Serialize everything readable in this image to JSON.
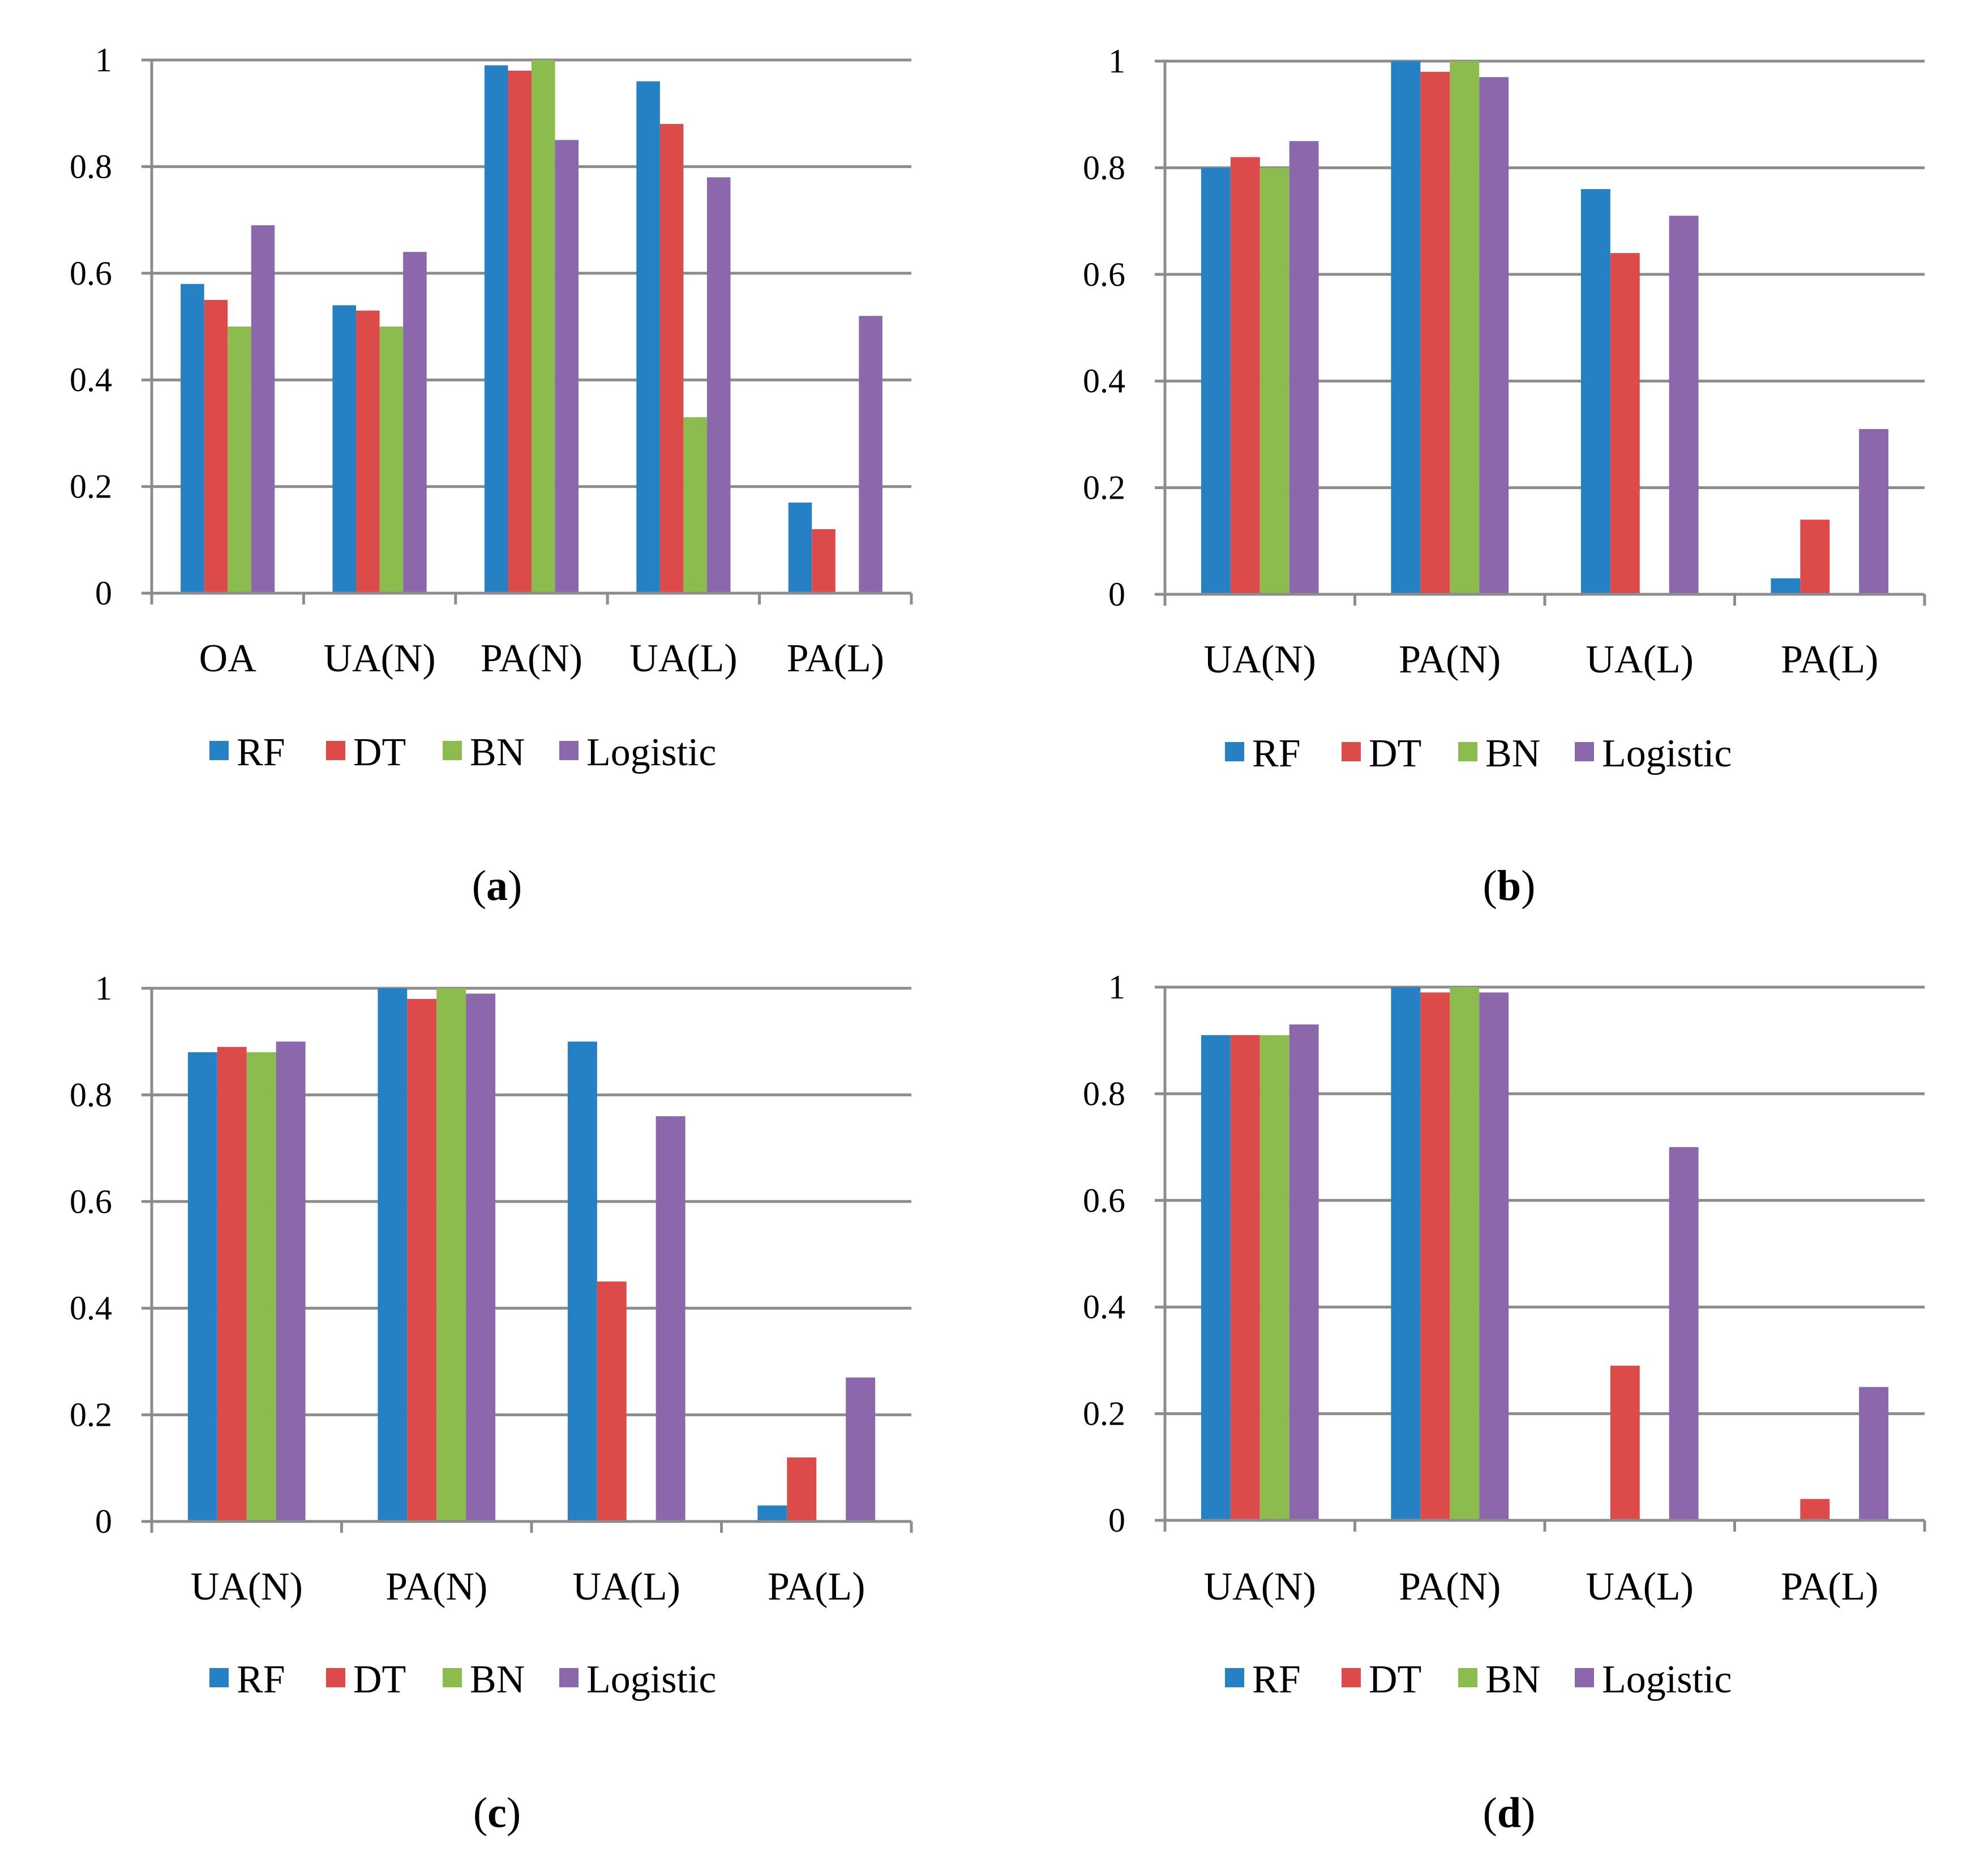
{
  "colors": {
    "RF": "#2681c4",
    "DT": "#dc4b4a",
    "BN": "#8cbb4e",
    "Logistic": "#8b68ab",
    "grid": "#8c8c8c",
    "axis": "#8c8c8c"
  },
  "chart_data": [
    {
      "type": "bar",
      "panel_label": "a",
      "categories": [
        "OA",
        "UA(N)",
        "PA(N)",
        "UA(L)",
        "PA(L)"
      ],
      "series": [
        {
          "name": "RF",
          "values": [
            0.58,
            0.54,
            0.99,
            0.96,
            0.17
          ]
        },
        {
          "name": "DT",
          "values": [
            0.55,
            0.53,
            0.98,
            0.88,
            0.12
          ]
        },
        {
          "name": "BN",
          "values": [
            0.5,
            0.5,
            1.0,
            0.33,
            0.0
          ]
        },
        {
          "name": "Logistic",
          "values": [
            0.69,
            0.64,
            0.85,
            0.78,
            0.52
          ]
        }
      ],
      "y_ticks": [
        "0",
        "0.2",
        "0.4",
        "0.6",
        "0.8",
        "1"
      ],
      "ylim": [
        0,
        1
      ],
      "grid": true,
      "legend": "bottom"
    },
    {
      "type": "bar",
      "panel_label": "b",
      "categories": [
        "UA(N)",
        "PA(N)",
        "UA(L)",
        "PA(L)"
      ],
      "series": [
        {
          "name": "RF",
          "values": [
            0.8,
            1.0,
            0.76,
            0.03
          ]
        },
        {
          "name": "DT",
          "values": [
            0.82,
            0.98,
            0.64,
            0.14
          ]
        },
        {
          "name": "BN",
          "values": [
            0.8,
            1.0,
            0.0,
            0.0
          ]
        },
        {
          "name": "Logistic",
          "values": [
            0.85,
            0.97,
            0.71,
            0.31
          ]
        }
      ],
      "y_ticks": [
        "0",
        "0.2",
        "0.4",
        "0.6",
        "0.8",
        "1"
      ],
      "ylim": [
        0,
        1
      ],
      "grid": true,
      "legend": "bottom"
    },
    {
      "type": "bar",
      "panel_label": "c",
      "categories": [
        "UA(N)",
        "PA(N)",
        "UA(L)",
        "PA(L)"
      ],
      "series": [
        {
          "name": "RF",
          "values": [
            0.88,
            1.0,
            0.9,
            0.03
          ]
        },
        {
          "name": "DT",
          "values": [
            0.89,
            0.98,
            0.45,
            0.12
          ]
        },
        {
          "name": "BN",
          "values": [
            0.88,
            1.0,
            0.0,
            0.0
          ]
        },
        {
          "name": "Logistic",
          "values": [
            0.9,
            0.99,
            0.76,
            0.27
          ]
        }
      ],
      "y_ticks": [
        "0",
        "0.2",
        "0.4",
        "0.6",
        "0.8",
        "1"
      ],
      "ylim": [
        0,
        1
      ],
      "grid": true,
      "legend": "bottom"
    },
    {
      "type": "bar",
      "panel_label": "d",
      "categories": [
        "UA(N)",
        "PA(N)",
        "UA(L)",
        "PA(L)"
      ],
      "series": [
        {
          "name": "RF",
          "values": [
            0.91,
            1.0,
            0.0,
            0.0
          ]
        },
        {
          "name": "DT",
          "values": [
            0.91,
            0.99,
            0.29,
            0.04
          ]
        },
        {
          "name": "BN",
          "values": [
            0.91,
            1.0,
            0.0,
            0.0
          ]
        },
        {
          "name": "Logistic",
          "values": [
            0.93,
            0.99,
            0.7,
            0.25
          ]
        }
      ],
      "y_ticks": [
        "0",
        "0.2",
        "0.4",
        "0.6",
        "0.8",
        "1"
      ],
      "ylim": [
        0,
        1
      ],
      "grid": true,
      "legend": "bottom"
    }
  ]
}
